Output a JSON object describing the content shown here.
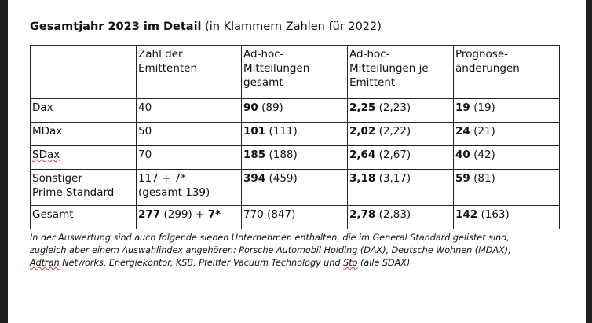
{
  "title": {
    "bold": "Gesamtjahr 2023 im Detail",
    "normal": "(in Klammern Zahlen für 2022)"
  },
  "headers": [
    "",
    "Zahl der\nEmittenten",
    "Ad-hoc-\nMitteilungen\ngesamt",
    "Ad-hoc-\nMitteilungen je\nEmittent",
    "Prognose-\nänderungen"
  ],
  "rows": [
    {
      "label": "Dax",
      "issuers": "40",
      "adhoc_bold": "90",
      "adhoc_prev": " (89)",
      "per_bold": "2,25",
      "per_prev": " (2,23)",
      "progn_bold": "19",
      "progn_prev": " (19)"
    },
    {
      "label": "MDax",
      "issuers": "50",
      "adhoc_bold": "101",
      "adhoc_prev": " (111)",
      "per_bold": "2,02",
      "per_prev": " (2,22)",
      "progn_bold": "24",
      "progn_prev": " (21)"
    },
    {
      "label": "SDax",
      "issuers": "70",
      "adhoc_bold": "185",
      "adhoc_prev": " (188)",
      "per_bold": "2,64",
      "per_prev": " (2,67)",
      "progn_bold": "40",
      "progn_prev": " (42)"
    },
    {
      "label": "Sonstiger\nPrime Standard",
      "issuers": "117 + 7*\n(gesamt 139)",
      "adhoc_bold": "394",
      "adhoc_prev": " (459)",
      "per_bold": "3,18",
      "per_prev": " (3,17)",
      "progn_bold": "59",
      "progn_prev": " (81)"
    }
  ],
  "total": {
    "label": "Gesamt",
    "issuers_bold": "277",
    "issuers_prev": " (299) + ",
    "issuers_extra_bold": "7*",
    "adhoc": "770 (847)",
    "per_bold": "2,78",
    "per_prev": " (2,83)",
    "progn_bold": "142",
    "progn_prev": " (163)"
  },
  "footnote": {
    "line1": "In der Auswertung sind auch folgende sieben Unternehmen enthalten, die im General Standard gelistet sind,",
    "line2": "zugleich aber einem Auswahlindex angehören: Porsche Automobil Holding (DAX), Deutsche Wohnen (MDAX),",
    "line3_a": "Adtran",
    "line3_b": " Networks, Energiekontor, KSB, Pfeiffer Vacuum Technology und ",
    "line3_c": "Sto",
    "line3_d": " (alle SDAX)"
  }
}
